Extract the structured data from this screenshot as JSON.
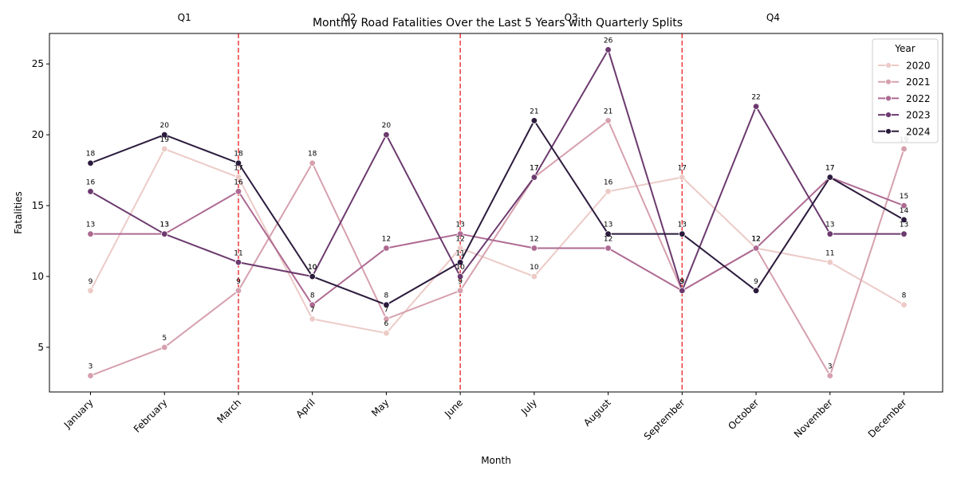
{
  "chart_data": {
    "type": "line",
    "title": "Monthly Road Fatalities Over the Last 5 Years with Quarterly Splits",
    "xlabel": "Month",
    "ylabel": "Fatalities",
    "categories": [
      "January",
      "February",
      "March",
      "April",
      "May",
      "June",
      "July",
      "August",
      "September",
      "October",
      "November",
      "December"
    ],
    "ylim": [
      1.85,
      27.15
    ],
    "yticks": [
      5,
      10,
      15,
      20,
      25
    ],
    "grid": false,
    "legend": {
      "title": "Year",
      "placement": "top-right"
    },
    "series": [
      {
        "name": "2020",
        "color": "#eccbc7",
        "values": [
          9,
          19,
          17,
          7,
          6,
          12,
          10,
          16,
          17,
          12,
          11,
          8
        ]
      },
      {
        "name": "2021",
        "color": "#d6a0ae",
        "values": [
          3,
          5,
          9,
          18,
          7,
          9,
          17,
          21,
          9,
          12,
          3,
          19
        ]
      },
      {
        "name": "2022",
        "color": "#ae6a92",
        "values": [
          13,
          13,
          16,
          8,
          12,
          13,
          12,
          12,
          9,
          12,
          17,
          15
        ]
      },
      {
        "name": "2023",
        "color": "#6c3a6e",
        "values": [
          16,
          13,
          11,
          10,
          20,
          10,
          17,
          26,
          9,
          22,
          13,
          13
        ]
      },
      {
        "name": "2024",
        "color": "#2b1b3d",
        "values": [
          18,
          20,
          18,
          10,
          8,
          11,
          21,
          13,
          13,
          9,
          17,
          14
        ]
      }
    ],
    "quarter_splits": {
      "color": "#ee3b3b",
      "after_categories": [
        "March",
        "June",
        "September"
      ],
      "labels": [
        "Q1",
        "Q2",
        "Q3",
        "Q4"
      ]
    }
  }
}
